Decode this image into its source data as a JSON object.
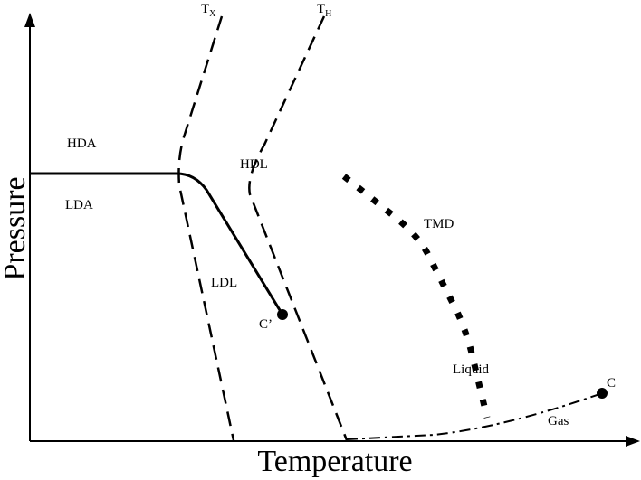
{
  "axes": {
    "y_label": "Pressure",
    "x_label": "Temperature"
  },
  "curves": {
    "tx": {
      "main": "T",
      "sub": "X"
    },
    "th": {
      "main": "T",
      "sub": "H"
    }
  },
  "regions": {
    "hda": "HDA",
    "lda": "LDA",
    "hdl": "HDL",
    "ldl": "LDL",
    "tmd": "TMD",
    "liquid": "Liquid",
    "gas": "Gas"
  },
  "points": {
    "c_prime": "C’",
    "c": "C"
  }
}
